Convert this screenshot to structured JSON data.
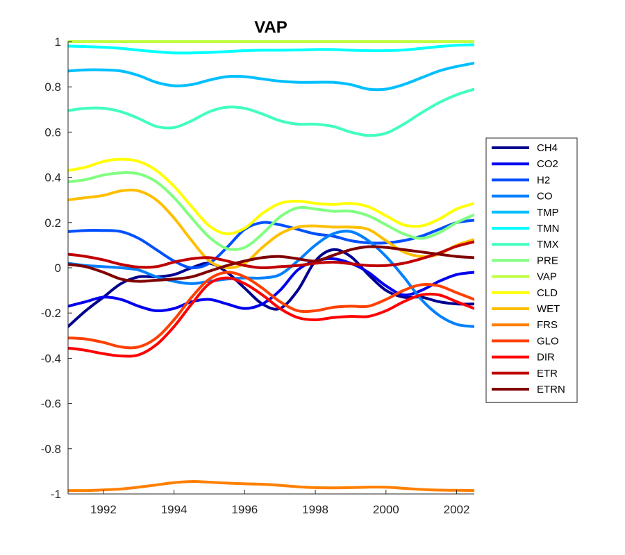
{
  "chart_data": {
    "type": "line",
    "title": "VAP",
    "xlabel": "",
    "ylabel": "",
    "xlim": [
      1991.0,
      2002.5
    ],
    "ylim": [
      -1,
      1
    ],
    "xticks": [
      1992,
      1994,
      1996,
      1998,
      2000,
      2002
    ],
    "xtick_labels": [
      "1992",
      "1994",
      "1996",
      "1998",
      "2000",
      "2002"
    ],
    "yticks": [
      1,
      0.8,
      0.6,
      0.4,
      0.2,
      0,
      -0.2,
      -0.4,
      -0.6,
      -0.8,
      -1
    ],
    "ytick_labels": [
      "1",
      "0.8",
      "0.6",
      "0.4",
      "0.2",
      "0",
      "-0.2",
      "-0.4",
      "-0.6",
      "-0.8",
      "-1"
    ],
    "grid": false,
    "legend_position": "right",
    "x": [
      1991.0,
      1991.5,
      1992.0,
      1992.5,
      1993.0,
      1993.5,
      1994.0,
      1994.5,
      1995.0,
      1995.5,
      1996.0,
      1996.5,
      1997.0,
      1997.5,
      1998.0,
      1998.5,
      1999.0,
      1999.5,
      2000.0,
      2000.5,
      2001.0,
      2001.5,
      2002.0,
      2002.5
    ],
    "series": [
      {
        "name": "CH4",
        "color": "#00008F",
        "values": [
          -0.26,
          -0.19,
          -0.13,
          -0.07,
          -0.04,
          -0.04,
          -0.03,
          0.0,
          0.02,
          -0.02,
          -0.09,
          -0.16,
          -0.18,
          -0.1,
          0.03,
          0.08,
          0.05,
          -0.03,
          -0.1,
          -0.13,
          -0.13,
          -0.15,
          -0.16,
          -0.16
        ]
      },
      {
        "name": "CO2",
        "color": "#0000EF",
        "values": [
          -0.17,
          -0.15,
          -0.13,
          -0.14,
          -0.17,
          -0.19,
          -0.18,
          -0.15,
          -0.14,
          -0.16,
          -0.18,
          -0.16,
          -0.1,
          -0.01,
          0.03,
          0.04,
          0.02,
          -0.02,
          -0.08,
          -0.12,
          -0.1,
          -0.06,
          -0.03,
          -0.02
        ]
      },
      {
        "name": "H2",
        "color": "#0050FF",
        "values": [
          0.16,
          0.165,
          0.165,
          0.16,
          0.13,
          0.08,
          0.03,
          0.0,
          0.02,
          0.09,
          0.17,
          0.2,
          0.19,
          0.17,
          0.15,
          0.14,
          0.12,
          0.11,
          0.11,
          0.12,
          0.14,
          0.17,
          0.2,
          0.21
        ]
      },
      {
        "name": "CO",
        "color": "#0080FF",
        "values": [
          0.02,
          0.01,
          0.005,
          0.0,
          -0.01,
          -0.04,
          -0.06,
          -0.07,
          -0.06,
          -0.05,
          -0.045,
          -0.045,
          -0.03,
          0.03,
          0.1,
          0.15,
          0.16,
          0.12,
          0.05,
          -0.04,
          -0.14,
          -0.21,
          -0.25,
          -0.26
        ]
      },
      {
        "name": "TMP",
        "color": "#00BFFF",
        "values": [
          0.87,
          0.875,
          0.875,
          0.87,
          0.85,
          0.82,
          0.805,
          0.81,
          0.83,
          0.845,
          0.845,
          0.835,
          0.825,
          0.82,
          0.82,
          0.82,
          0.81,
          0.79,
          0.79,
          0.81,
          0.84,
          0.87,
          0.89,
          0.905
        ]
      },
      {
        "name": "TMN",
        "color": "#00FFFF",
        "values": [
          0.98,
          0.978,
          0.975,
          0.97,
          0.962,
          0.955,
          0.95,
          0.95,
          0.952,
          0.956,
          0.96,
          0.962,
          0.962,
          0.963,
          0.965,
          0.965,
          0.962,
          0.96,
          0.96,
          0.963,
          0.97,
          0.978,
          0.984,
          0.986
        ]
      },
      {
        "name": "TMX",
        "color": "#40FFBF",
        "values": [
          0.695,
          0.705,
          0.705,
          0.69,
          0.66,
          0.625,
          0.62,
          0.65,
          0.69,
          0.71,
          0.705,
          0.68,
          0.65,
          0.635,
          0.635,
          0.625,
          0.6,
          0.585,
          0.595,
          0.635,
          0.685,
          0.73,
          0.765,
          0.79
        ]
      },
      {
        "name": "PRE",
        "color": "#80FF80",
        "values": [
          0.38,
          0.39,
          0.41,
          0.42,
          0.415,
          0.38,
          0.31,
          0.22,
          0.135,
          0.085,
          0.09,
          0.15,
          0.225,
          0.265,
          0.26,
          0.25,
          0.25,
          0.23,
          0.19,
          0.15,
          0.13,
          0.155,
          0.2,
          0.235
        ]
      },
      {
        "name": "VAP",
        "color": "#BFFF40",
        "values": [
          1,
          1,
          1,
          1,
          1,
          1,
          1,
          1,
          1,
          1,
          1,
          1,
          1,
          1,
          1,
          1,
          1,
          1,
          1,
          1,
          1,
          1,
          1,
          1
        ]
      },
      {
        "name": "CLD",
        "color": "#FFFF00",
        "values": [
          0.43,
          0.445,
          0.47,
          0.48,
          0.47,
          0.43,
          0.36,
          0.27,
          0.185,
          0.15,
          0.175,
          0.24,
          0.285,
          0.295,
          0.285,
          0.28,
          0.285,
          0.27,
          0.23,
          0.19,
          0.185,
          0.215,
          0.26,
          0.285
        ]
      },
      {
        "name": "WET",
        "color": "#FFBF00",
        "values": [
          0.3,
          0.31,
          0.32,
          0.34,
          0.34,
          0.3,
          0.22,
          0.12,
          0.03,
          0.0,
          0.02,
          0.09,
          0.15,
          0.18,
          0.185,
          0.18,
          0.18,
          0.17,
          0.12,
          0.07,
          0.05,
          0.06,
          0.1,
          0.125
        ]
      },
      {
        "name": "FRS",
        "color": "#FF8000",
        "values": [
          -0.985,
          -0.985,
          -0.982,
          -0.978,
          -0.97,
          -0.96,
          -0.95,
          -0.945,
          -0.948,
          -0.952,
          -0.955,
          -0.957,
          -0.962,
          -0.968,
          -0.972,
          -0.973,
          -0.972,
          -0.97,
          -0.97,
          -0.975,
          -0.98,
          -0.983,
          -0.984,
          -0.985
        ]
      },
      {
        "name": "GLO",
        "color": "#FF4000",
        "values": [
          -0.31,
          -0.315,
          -0.33,
          -0.35,
          -0.35,
          -0.31,
          -0.23,
          -0.13,
          -0.05,
          -0.02,
          -0.04,
          -0.09,
          -0.15,
          -0.19,
          -0.19,
          -0.175,
          -0.17,
          -0.17,
          -0.14,
          -0.1,
          -0.075,
          -0.08,
          -0.11,
          -0.14
        ]
      },
      {
        "name": "DIR",
        "color": "#FF0000",
        "values": [
          -0.355,
          -0.365,
          -0.38,
          -0.39,
          -0.385,
          -0.34,
          -0.26,
          -0.16,
          -0.07,
          -0.045,
          -0.07,
          -0.12,
          -0.18,
          -0.22,
          -0.23,
          -0.22,
          -0.215,
          -0.215,
          -0.19,
          -0.15,
          -0.12,
          -0.12,
          -0.15,
          -0.18
        ]
      },
      {
        "name": "ETR",
        "color": "#BF0000",
        "values": [
          0.06,
          0.05,
          0.035,
          0.015,
          0.003,
          0.005,
          0.025,
          0.04,
          0.045,
          0.03,
          0.01,
          0.0,
          0.005,
          0.01,
          0.02,
          0.025,
          0.018,
          0.01,
          0.01,
          0.02,
          0.04,
          0.065,
          0.095,
          0.115
        ]
      },
      {
        "name": "ETRN",
        "color": "#800000",
        "values": [
          0.015,
          0.005,
          -0.02,
          -0.05,
          -0.06,
          -0.055,
          -0.05,
          -0.04,
          -0.015,
          0.01,
          0.03,
          0.045,
          0.05,
          0.04,
          0.03,
          0.055,
          0.08,
          0.093,
          0.09,
          0.08,
          0.07,
          0.06,
          0.05,
          0.045
        ]
      }
    ]
  }
}
